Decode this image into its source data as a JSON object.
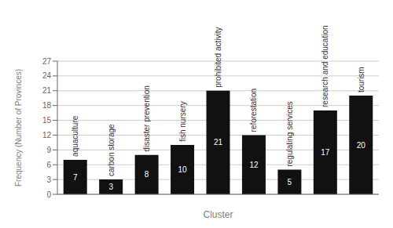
{
  "chart_data": {
    "type": "bar",
    "categories": [
      "aquaculture",
      "carbon storage",
      "disaster prevention",
      "fish nursery",
      "prohibited activity",
      "reforestation",
      "regulating services",
      "research and education",
      "tourism"
    ],
    "values": [
      7,
      3,
      8,
      10,
      21,
      12,
      5,
      17,
      20
    ],
    "color": "#111111",
    "xlabel": "Cluster",
    "ylabel": "Frequency (Number of Provinces)",
    "ylim": [
      0,
      27
    ],
    "yticks": [
      0,
      3,
      6,
      9,
      12,
      15,
      18,
      21,
      24,
      27
    ],
    "grid": true,
    "data_labels": true,
    "tick_labels": "y"
  }
}
